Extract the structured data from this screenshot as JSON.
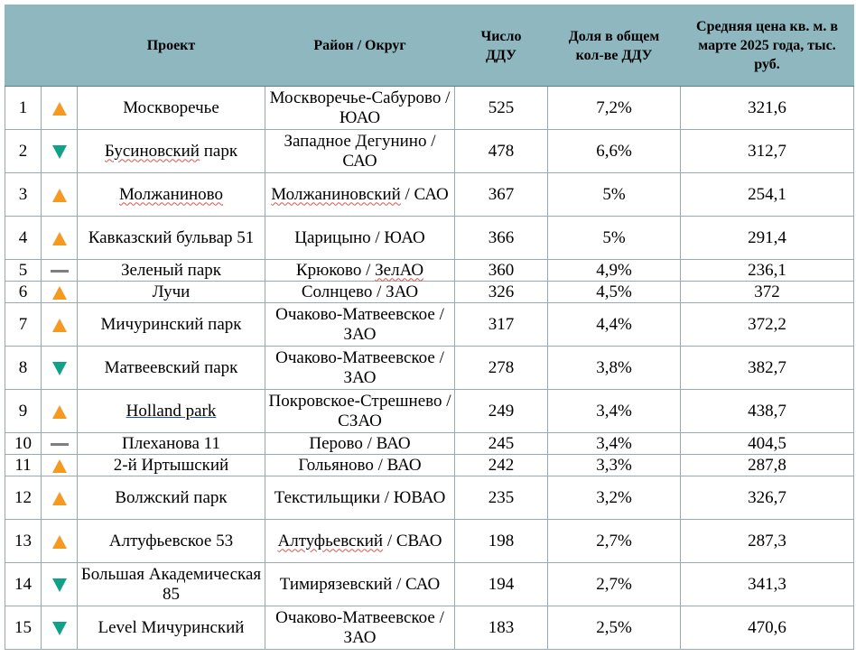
{
  "headers": {
    "num": "",
    "trend": "",
    "project": "Проект",
    "district": "Район / Округ",
    "ddu_count": "Число ДДУ",
    "ddu_share": "Доля в общем кол-ве ДДУ",
    "avg_price": "Средняя цена кв. м. в марте 2025 года, тыс. руб."
  },
  "colors": {
    "header_bg": "#8fb7bf",
    "trend_up": "#f39a1f",
    "trend_down": "#11a08a",
    "trend_flat": "#7f7f7f"
  },
  "rows": [
    {
      "n": "1",
      "trend": "up",
      "project": "Москворечье",
      "district": "Москворечье-Сабурово / ЮАО",
      "count": "525",
      "share": "7,2%",
      "price": "321,6",
      "lines": 2
    },
    {
      "n": "2",
      "trend": "down",
      "project": "Бусиновский парк",
      "district": "Западное Дегунино / САО",
      "count": "478",
      "share": "6,6%",
      "price": "312,7",
      "lines": 2
    },
    {
      "n": "3",
      "trend": "up",
      "project": "Молжаниново",
      "district": "Молжаниновский / САО",
      "count": "367",
      "share": "5%",
      "price": "254,1",
      "lines": 2
    },
    {
      "n": "4",
      "trend": "up",
      "project": "Кавказский бульвар 51",
      "district": "Царицыно / ЮАО",
      "count": "366",
      "share": "5%",
      "price": "291,4",
      "lines": 2
    },
    {
      "n": "5",
      "trend": "flat",
      "project": "Зеленый парк",
      "district": "Крюково / ЗелАО",
      "count": "360",
      "share": "4,9%",
      "price": "236,1",
      "lines": 1
    },
    {
      "n": "6",
      "trend": "up",
      "project": "Лучи",
      "district": "Солнцево / ЗАО",
      "count": "326",
      "share": "4,5%",
      "price": "372",
      "lines": 1
    },
    {
      "n": "7",
      "trend": "up",
      "project": "Мичуринский парк",
      "district": "Очаково-Матвеевское / ЗАО",
      "count": "317",
      "share": "4,4%",
      "price": "372,2",
      "lines": 2
    },
    {
      "n": "8",
      "trend": "down",
      "project": "Матвеевский парк",
      "district": "Очаково-Матвеевское / ЗАО",
      "count": "278",
      "share": "3,8%",
      "price": "382,7",
      "lines": 2
    },
    {
      "n": "9",
      "trend": "up",
      "project": "Holland park",
      "district": "Покровское-Стрешнево / СЗАО",
      "count": "249",
      "share": "3,4%",
      "price": "438,7",
      "lines": 2
    },
    {
      "n": "10",
      "trend": "flat",
      "project": "Плеханова 11",
      "district": "Перово / ВАО",
      "count": "245",
      "share": "3,4%",
      "price": "404,5",
      "lines": 1
    },
    {
      "n": "11",
      "trend": "up",
      "project": "2-й Иртышский",
      "district": "Гольяново / ВАО",
      "count": "242",
      "share": "3,3%",
      "price": "287,8",
      "lines": 1
    },
    {
      "n": "12",
      "trend": "up",
      "project": "Волжский парк",
      "district": "Текстильщики / ЮВАО",
      "count": "235",
      "share": "3,2%",
      "price": "326,7",
      "lines": 2
    },
    {
      "n": "13",
      "trend": "up",
      "project": "Алтуфьевское 53",
      "district": "Алтуфьевский / СВАО",
      "count": "198",
      "share": "2,7%",
      "price": "287,3",
      "lines": 2
    },
    {
      "n": "14",
      "trend": "down",
      "project": "Большая Академическая 85",
      "district": "Тимирязевский / САО",
      "count": "194",
      "share": "2,7%",
      "price": "341,3",
      "lines": 2
    },
    {
      "n": "15",
      "trend": "down",
      "project": "Level Мичуринский",
      "district": "Очаково-Матвеевское / ЗАО",
      "count": "183",
      "share": "2,5%",
      "price": "470,6",
      "lines": 2
    }
  ]
}
